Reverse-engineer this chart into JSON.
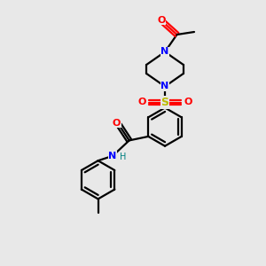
{
  "background_color": "#e8e8e8",
  "bond_color": "#000000",
  "nitrogen_color": "#0000ff",
  "oxygen_color": "#ff0000",
  "sulfur_color": "#bbbb00",
  "hydrogen_color": "#008080",
  "figsize": [
    3.0,
    3.0
  ],
  "dpi": 100,
  "xlim": [
    0,
    10
  ],
  "ylim": [
    0,
    10
  ]
}
